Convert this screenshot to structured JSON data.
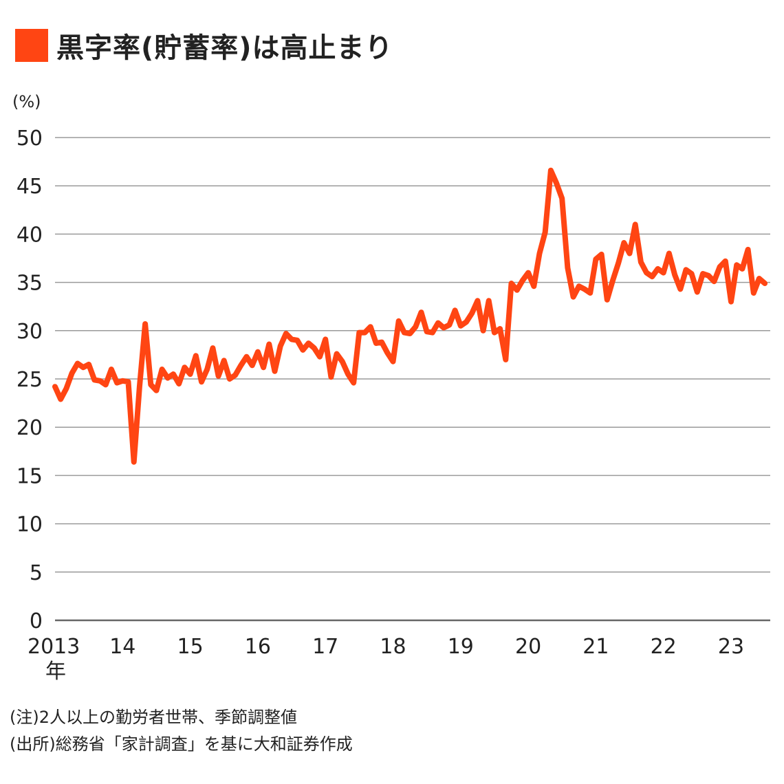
{
  "title": "黒字率(貯蓄率)は高止まり",
  "accent_color": "#ff4513",
  "unit_label": "(%)",
  "notes": [
    "(注)2人以上の勤労者世帯、季節調整値",
    "(出所)総務省「家計調査」を基に大和証券作成"
  ],
  "chart_data": {
    "type": "line",
    "title": "黒字率(貯蓄率)は高止まり",
    "ylabel": "(%)",
    "ylim": [
      0,
      50
    ],
    "yticks": [
      0,
      5,
      10,
      15,
      20,
      25,
      30,
      35,
      40,
      45,
      50
    ],
    "xlim": [
      2013.0,
      2023.58
    ],
    "x_ticks": [
      {
        "value": 2013,
        "label": "2013",
        "sublabel": "年"
      },
      {
        "value": 2014,
        "label": "14"
      },
      {
        "value": 2015,
        "label": "15"
      },
      {
        "value": 2016,
        "label": "16"
      },
      {
        "value": 2017,
        "label": "17"
      },
      {
        "value": 2018,
        "label": "18"
      },
      {
        "value": 2019,
        "label": "19"
      },
      {
        "value": 2020,
        "label": "20"
      },
      {
        "value": 2021,
        "label": "21"
      },
      {
        "value": 2022,
        "label": "22"
      },
      {
        "value": 2023,
        "label": "23"
      }
    ],
    "grid": true,
    "line_color": "#ff4513",
    "series": [
      {
        "start": "2013-01",
        "frequency": "monthly",
        "values": [
          24.2,
          22.9,
          24.0,
          25.6,
          26.6,
          26.2,
          26.5,
          24.9,
          24.8,
          24.4,
          26.0,
          24.6,
          24.8,
          24.7,
          16.4,
          24.2,
          30.7,
          24.4,
          23.8,
          26.0,
          25.1,
          25.5,
          24.5,
          26.2,
          25.5,
          27.4,
          24.7,
          26.0,
          28.2,
          25.3,
          26.9,
          25.0,
          25.4,
          26.4,
          27.3,
          26.4,
          27.8,
          26.2,
          28.6,
          25.8,
          28.4,
          29.7,
          29.1,
          29.0,
          28.0,
          28.7,
          28.2,
          27.3,
          29.1,
          25.2,
          27.6,
          26.8,
          25.5,
          24.6,
          29.8,
          29.8,
          30.4,
          28.7,
          28.8,
          27.7,
          26.8,
          31.0,
          29.8,
          29.7,
          30.4,
          31.9,
          29.9,
          29.8,
          30.8,
          30.3,
          30.6,
          32.1,
          30.5,
          30.9,
          31.8,
          33.1,
          30.0,
          33.1,
          29.8,
          30.2,
          27.0,
          34.9,
          34.2,
          35.2,
          36.0,
          34.6,
          38.0,
          40.2,
          46.6,
          45.3,
          43.7,
          36.5,
          33.5,
          34.6,
          34.3,
          33.9,
          37.4,
          37.9,
          33.2,
          35.2,
          37.0,
          39.1,
          38.0,
          41.0,
          37.1,
          36.0,
          35.6,
          36.4,
          36.0,
          38.0,
          35.8,
          34.3,
          36.3,
          35.9,
          34.0,
          35.9,
          35.7,
          35.1,
          36.6,
          37.2,
          33.0,
          36.8,
          36.4,
          38.4,
          33.9,
          35.4,
          34.9
        ]
      }
    ]
  }
}
